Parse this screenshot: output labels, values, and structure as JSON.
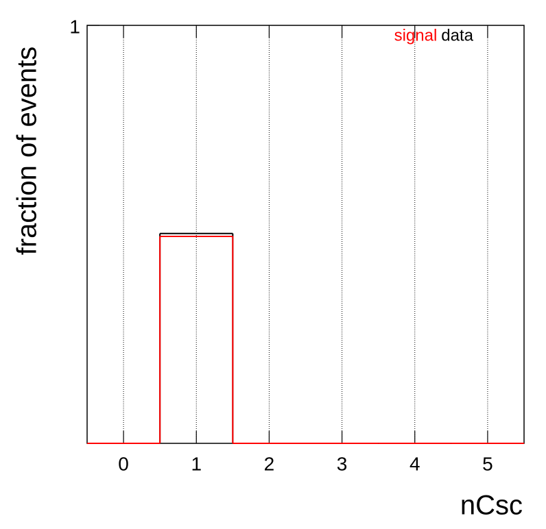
{
  "chart_data": {
    "type": "histogram",
    "bins": [
      -0.5,
      0.5,
      1.5,
      2.5,
      3.5,
      4.5,
      5.5
    ],
    "series": [
      {
        "name": "data",
        "color": "#000000",
        "values": [
          0,
          0.502,
          0,
          0,
          0,
          0
        ]
      },
      {
        "name": "signal",
        "color": "#ff0000",
        "values": [
          0,
          0.495,
          0,
          0,
          0,
          0
        ]
      }
    ],
    "xlabel": "nCsc",
    "ylabel": "fraction of events",
    "xlim": [
      -0.5,
      5.5
    ],
    "xticks": [
      0,
      1,
      2,
      3,
      4,
      5
    ],
    "ylim": [
      0,
      1
    ],
    "yticks": [
      1
    ],
    "grid": "x",
    "legend": "upper right"
  }
}
